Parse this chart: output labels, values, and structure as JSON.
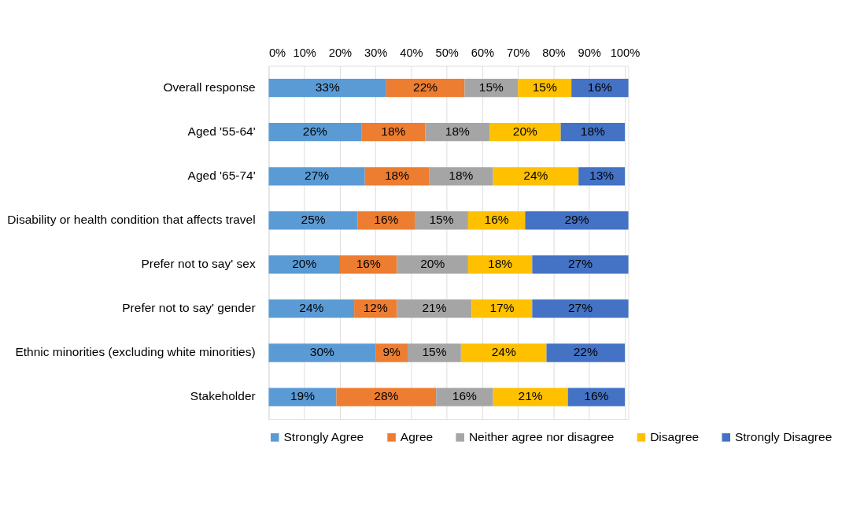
{
  "chart_data": {
    "type": "bar",
    "orientation": "horizontal",
    "stacked": true,
    "categories": [
      "Overall response",
      "Aged '55-64'",
      "Aged '65-74'",
      "Disability or health condition that affects travel",
      "Prefer not to say' sex",
      "Prefer not to say' gender",
      "Ethnic minorities (excluding white minorities)",
      "Stakeholder"
    ],
    "series": [
      {
        "name": "Strongly Agree",
        "color": "#5b9bd5",
        "values": [
          33,
          26,
          27,
          25,
          20,
          24,
          30,
          19
        ],
        "value_labels": [
          "33%",
          "26%",
          "27%",
          "25%",
          "20%",
          "24%",
          "30%",
          "19%"
        ]
      },
      {
        "name": "Agree",
        "color": "#ed7d31",
        "values": [
          22,
          18,
          18,
          16,
          16,
          12,
          9,
          28
        ],
        "value_labels": [
          "22%",
          "18%",
          "18%",
          "16%",
          "16%",
          "12%",
          "9%",
          "28%"
        ]
      },
      {
        "name": "Neither agree nor disagree",
        "color": "#a5a5a5",
        "values": [
          15,
          18,
          18,
          15,
          20,
          21,
          15,
          16
        ],
        "value_labels": [
          "15%",
          "18%",
          "18%",
          "15%",
          "20%",
          "21%",
          "15%",
          "16%"
        ]
      },
      {
        "name": "Disagree",
        "color": "#ffc000",
        "values": [
          15,
          20,
          24,
          16,
          18,
          17,
          24,
          21
        ],
        "value_labels": [
          "15%",
          "20%",
          "24%",
          "16%",
          "18%",
          "17%",
          "24%",
          "21%"
        ]
      },
      {
        "name": "Strongly Disagree",
        "color": "#4472c4",
        "values": [
          16,
          18,
          13,
          29,
          27,
          27,
          22,
          16
        ],
        "value_labels": [
          "16%",
          "18%",
          "13%",
          "29%",
          "27%",
          "27%",
          "22%",
          "16%"
        ]
      }
    ],
    "xlim": [
      0,
      101
    ],
    "xticks": [
      {
        "value": 0,
        "label": "0%"
      },
      {
        "value": 10,
        "label": "10%"
      },
      {
        "value": 20,
        "label": "20%"
      },
      {
        "value": 30,
        "label": "30%"
      },
      {
        "value": 40,
        "label": "40%"
      },
      {
        "value": 50,
        "label": "50%"
      },
      {
        "value": 60,
        "label": "60%"
      },
      {
        "value": 70,
        "label": "70%"
      },
      {
        "value": 80,
        "label": "80%"
      },
      {
        "value": 90,
        "label": "90%"
      },
      {
        "value": 100,
        "label": "100%"
      }
    ],
    "grid": "x",
    "legend": "bottom"
  }
}
